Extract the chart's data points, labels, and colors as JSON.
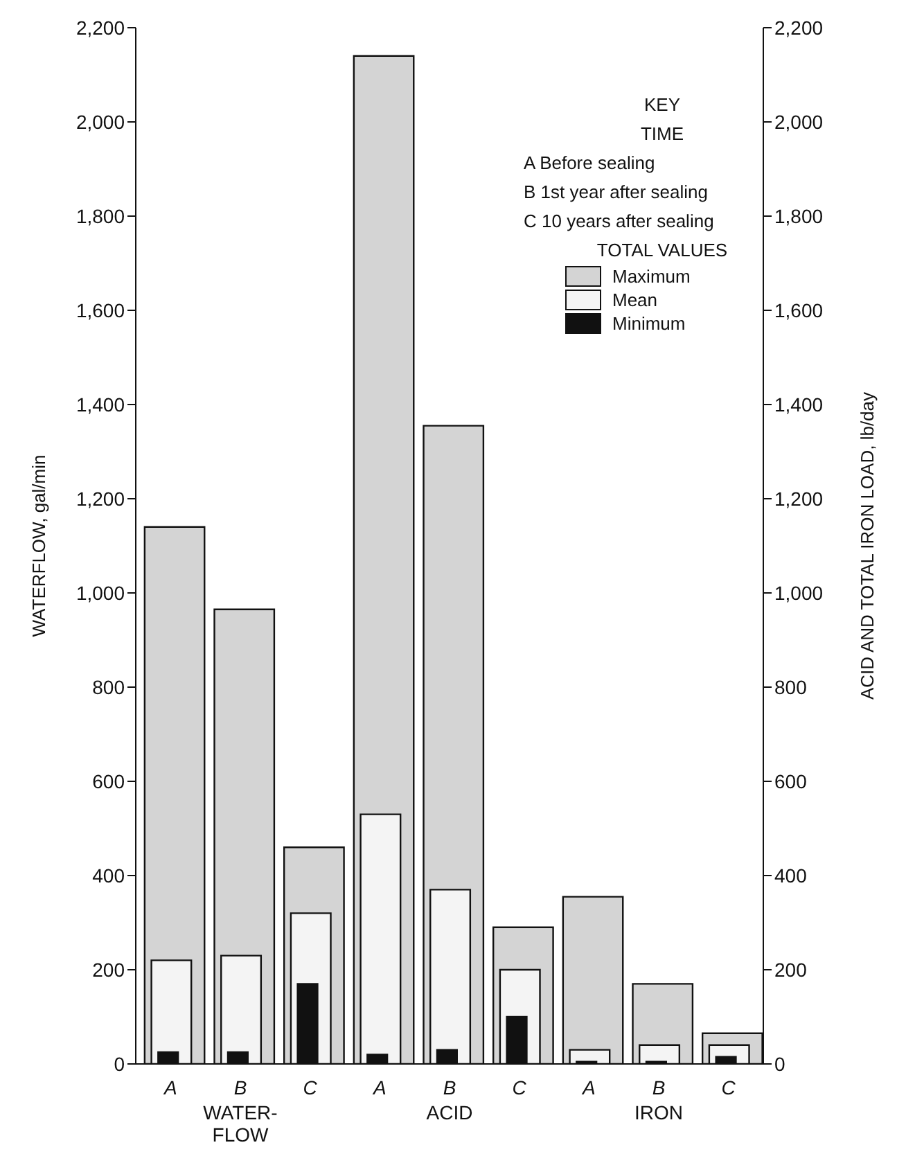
{
  "chart_data": {
    "type": "bar",
    "categories": [
      "A",
      "B",
      "C",
      "A",
      "B",
      "C",
      "A",
      "B",
      "C"
    ],
    "series": [
      {
        "name": "Maximum",
        "color": "#d4d4d4",
        "values": [
          1140,
          965,
          460,
          2140,
          1355,
          290,
          355,
          170,
          65
        ]
      },
      {
        "name": "Mean",
        "color": "#f4f4f4",
        "values": [
          220,
          230,
          320,
          530,
          370,
          200,
          30,
          40,
          40
        ]
      },
      {
        "name": "Minimum",
        "color": "#111111",
        "values": [
          25,
          25,
          170,
          20,
          30,
          100,
          5,
          5,
          15
        ]
      }
    ],
    "ylabel": "WATERFLOW, gal/min",
    "y2label": "ACID AND TOTAL IRON LOAD, lb/day",
    "ylim": [
      0,
      2200
    ],
    "yticks": [
      0,
      {
        "value": 200,
        "label": "200"
      },
      {
        "value": 400,
        "label": "400"
      },
      {
        "value": 600,
        "label": "600"
      },
      {
        "value": 800,
        "label": "800"
      },
      {
        "value": 1000,
        "label": "1,000"
      },
      {
        "value": 1200,
        "label": "1,200"
      },
      {
        "value": 1400,
        "label": "1,400"
      },
      {
        "value": 1600,
        "label": "1,600"
      },
      {
        "value": 1800,
        "label": "1,800"
      },
      {
        "value": 2000,
        "label": "2,000"
      },
      {
        "value": 2200,
        "label": "2,200"
      }
    ],
    "y2lim": [
      0,
      2200
    ],
    "y2ticks": [
      0,
      {
        "value": 200,
        "label": "200"
      },
      {
        "value": 400,
        "label": "400"
      },
      {
        "value": 600,
        "label": "600"
      },
      {
        "value": 800,
        "label": "800"
      },
      {
        "value": 1000,
        "label": "1,000"
      },
      {
        "value": 1200,
        "label": "1,200"
      },
      {
        "value": 1400,
        "label": "1,400"
      },
      {
        "value": 1600,
        "label": "1,600"
      },
      {
        "value": 1800,
        "label": "1,800"
      },
      {
        "value": 2000,
        "label": "2,000"
      },
      {
        "value": 2200,
        "label": "2,200"
      }
    ],
    "annotations": [
      "WATER-FLOW",
      "ACID",
      "IRON",
      "KEY",
      "TIME",
      "A Before sealing",
      "B 1st year after sealing",
      "C 10 years after sealing"
    ],
    "legend_title": "TOTAL VALUES",
    "legend": "top right",
    "grid": false
  }
}
